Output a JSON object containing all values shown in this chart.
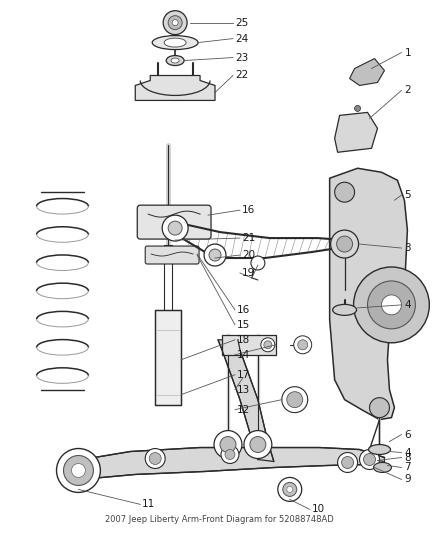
{
  "title": "2007 Jeep Liberty Arm-Front Diagram for 52088748AD",
  "bg_color": "#ffffff",
  "line_color": "#2a2a2a",
  "label_color": "#1a1a1a",
  "leader_color": "#555555",
  "fig_width": 4.38,
  "fig_height": 5.33,
  "dpi": 100
}
